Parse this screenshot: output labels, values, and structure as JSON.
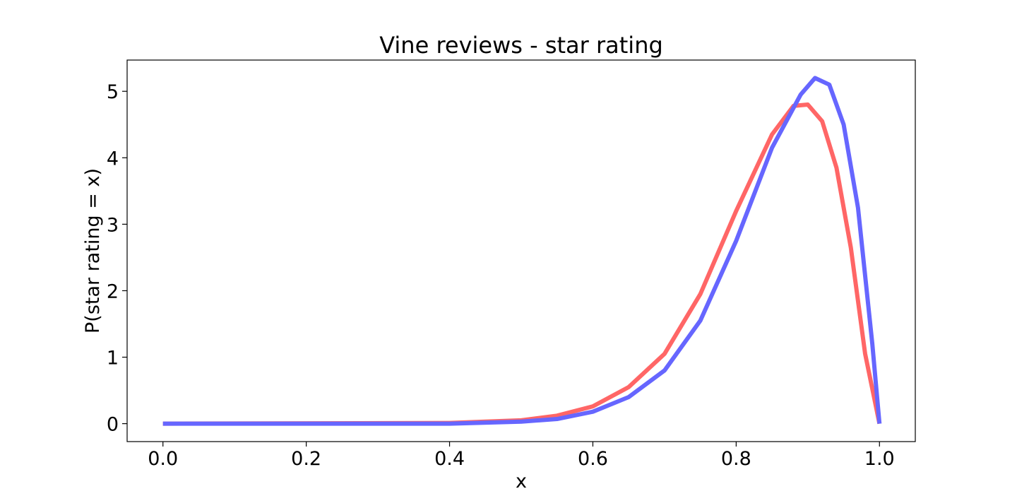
{
  "chart_data": {
    "type": "line",
    "title": "Vine reviews - star rating",
    "xlabel": "x",
    "ylabel": "P(star rating = x)",
    "xlim": [
      -0.05,
      1.05
    ],
    "ylim": [
      -0.27,
      5.47
    ],
    "x_ticks": [
      0.0,
      0.2,
      0.4,
      0.6,
      0.8,
      1.0
    ],
    "x_tick_labels": [
      "0.0",
      "0.2",
      "0.4",
      "0.6",
      "0.8",
      "1.0"
    ],
    "y_ticks": [
      0,
      1,
      2,
      3,
      4,
      5
    ],
    "y_tick_labels": [
      "0",
      "1",
      "2",
      "3",
      "4",
      "5"
    ],
    "grid": false,
    "legend": "none",
    "series": [
      {
        "color": "#ff6666",
        "x": [
          0.0,
          0.4,
          0.5,
          0.55,
          0.6,
          0.65,
          0.7,
          0.75,
          0.8,
          0.85,
          0.88,
          0.9,
          0.92,
          0.94,
          0.96,
          0.98,
          1.0
        ],
        "y": [
          0.0,
          0.01,
          0.05,
          0.12,
          0.26,
          0.55,
          1.05,
          1.95,
          3.2,
          4.35,
          4.78,
          4.8,
          4.55,
          3.85,
          2.65,
          1.05,
          0.0
        ]
      },
      {
        "color": "#6666ff",
        "x": [
          0.0,
          0.4,
          0.5,
          0.55,
          0.6,
          0.65,
          0.7,
          0.75,
          0.8,
          0.85,
          0.89,
          0.91,
          0.93,
          0.95,
          0.97,
          0.99,
          1.0
        ],
        "y": [
          0.0,
          0.0,
          0.03,
          0.07,
          0.18,
          0.4,
          0.8,
          1.55,
          2.75,
          4.15,
          4.95,
          5.2,
          5.1,
          4.5,
          3.25,
          1.2,
          0.0
        ]
      }
    ]
  }
}
